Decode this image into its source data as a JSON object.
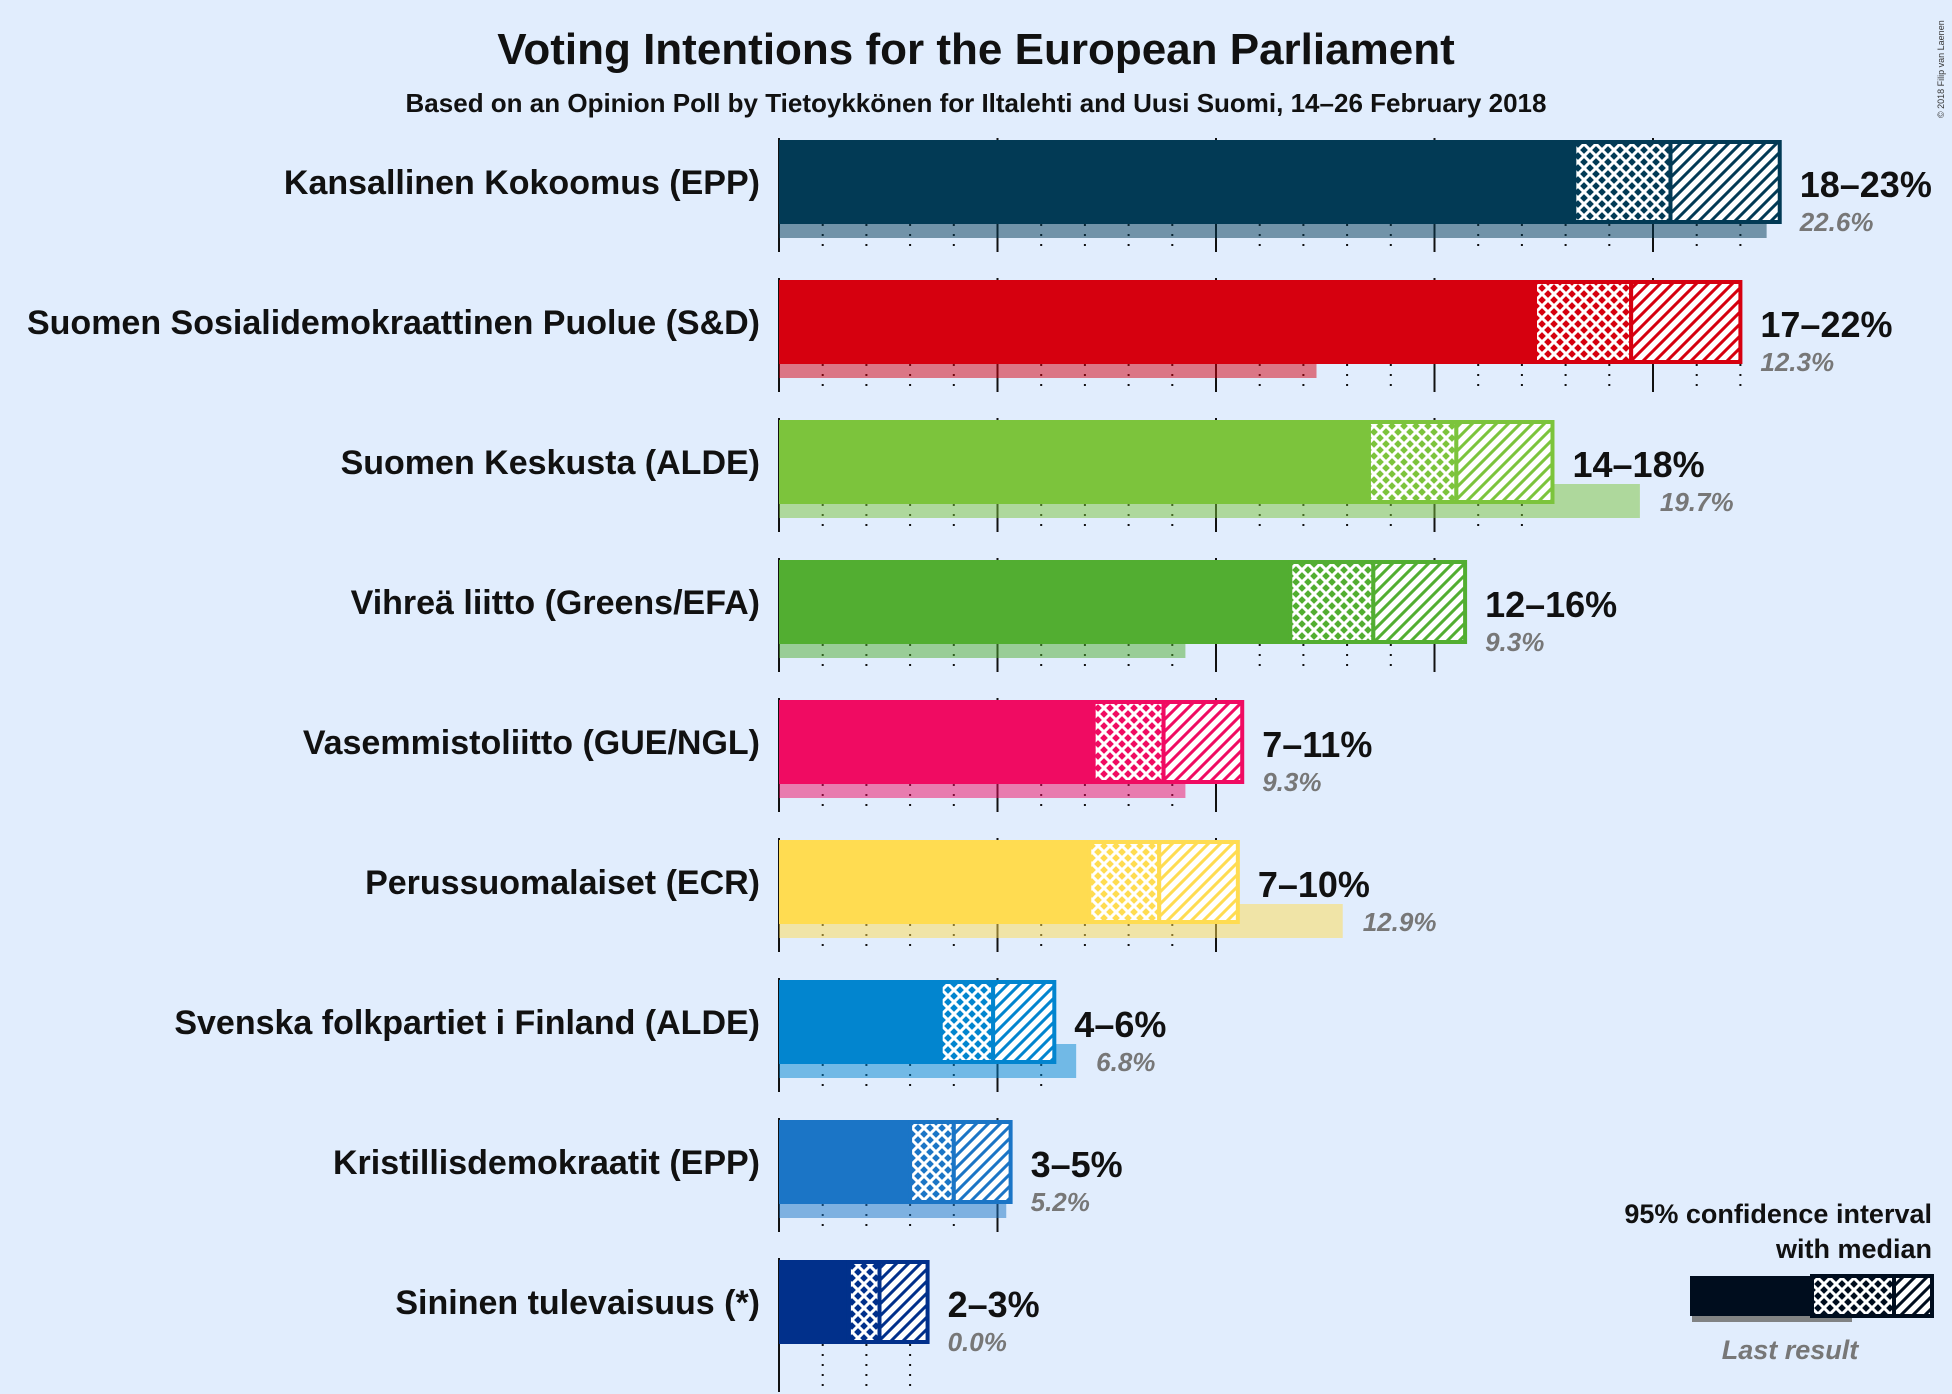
{
  "title": "Voting Intentions for the European Parliament",
  "subtitle": "Based on an Opinion Poll by Tietoykkönen for Iltalehti and Uusi Suomi, 14–26 February 2018",
  "copyright": "© 2018 Filip van Laenen",
  "legend": {
    "line1": "95% confidence interval",
    "line2": "with median",
    "last_result": "Last result"
  },
  "chart_data": {
    "type": "bar",
    "orientation": "horizontal",
    "title": "Voting Intentions for the European Parliament",
    "subtitle": "Based on an Opinion Poll by Tietoykkönen for Iltalehti and Uusi Suomi, 14–26 February 2018",
    "x_unit": "%",
    "xlim": [
      0,
      23
    ],
    "gridlines": {
      "major_every": 5,
      "minor_every": 1
    },
    "parties": [
      {
        "name": "Kansallinen Kokoomus (EPP)",
        "color": "#023a55",
        "ci_low": 18.2,
        "median": 20.4,
        "ci_high": 22.9,
        "range_label": "18–23%",
        "last_result": 22.6,
        "last_label": "22.6%"
      },
      {
        "name": "Suomen Sosialidemokraattinen Puolue (S&D)",
        "color": "#d6000f",
        "ci_low": 17.3,
        "median": 19.5,
        "ci_high": 22.0,
        "range_label": "17–22%",
        "last_result": 12.3,
        "last_label": "12.3%"
      },
      {
        "name": "Suomen Keskusta (ALDE)",
        "color": "#7cc43c",
        "ci_low": 13.5,
        "median": 15.5,
        "ci_high": 17.7,
        "range_label": "14–18%",
        "last_result": 19.7,
        "last_label": "19.7%"
      },
      {
        "name": "Vihreä liitto (Greens/EFA)",
        "color": "#52ae31",
        "ci_low": 11.7,
        "median": 13.6,
        "ci_high": 15.7,
        "range_label": "12–16%",
        "last_result": 9.3,
        "last_label": "9.3%"
      },
      {
        "name": "Vasemmistoliitto (GUE/NGL)",
        "color": "#f00b62",
        "ci_low": 7.2,
        "median": 8.8,
        "ci_high": 10.6,
        "range_label": "7–11%",
        "last_result": 9.3,
        "last_label": "9.3%"
      },
      {
        "name": "Perussuomalaiset (ECR)",
        "color": "#ffdc51",
        "ci_low": 7.1,
        "median": 8.7,
        "ci_high": 10.5,
        "range_label": "7–10%",
        "last_result": 12.9,
        "last_label": "12.9%"
      },
      {
        "name": "Svenska folkpartiet i Finland (ALDE)",
        "color": "#0285cf",
        "ci_low": 3.7,
        "median": 4.9,
        "ci_high": 6.3,
        "range_label": "4–6%",
        "last_result": 6.8,
        "last_label": "6.8%"
      },
      {
        "name": "Kristillisdemokraatit (EPP)",
        "color": "#1b75c6",
        "ci_low": 3.0,
        "median": 4.0,
        "ci_high": 5.3,
        "range_label": "3–5%",
        "last_result": 5.2,
        "last_label": "5.2%"
      },
      {
        "name": "Sininen tulevaisuus (*)",
        "color": "#01308b",
        "ci_low": 1.6,
        "median": 2.3,
        "ci_high": 3.4,
        "range_label": "2–3%",
        "last_result": 0.0,
        "last_label": "0.0%"
      }
    ]
  }
}
